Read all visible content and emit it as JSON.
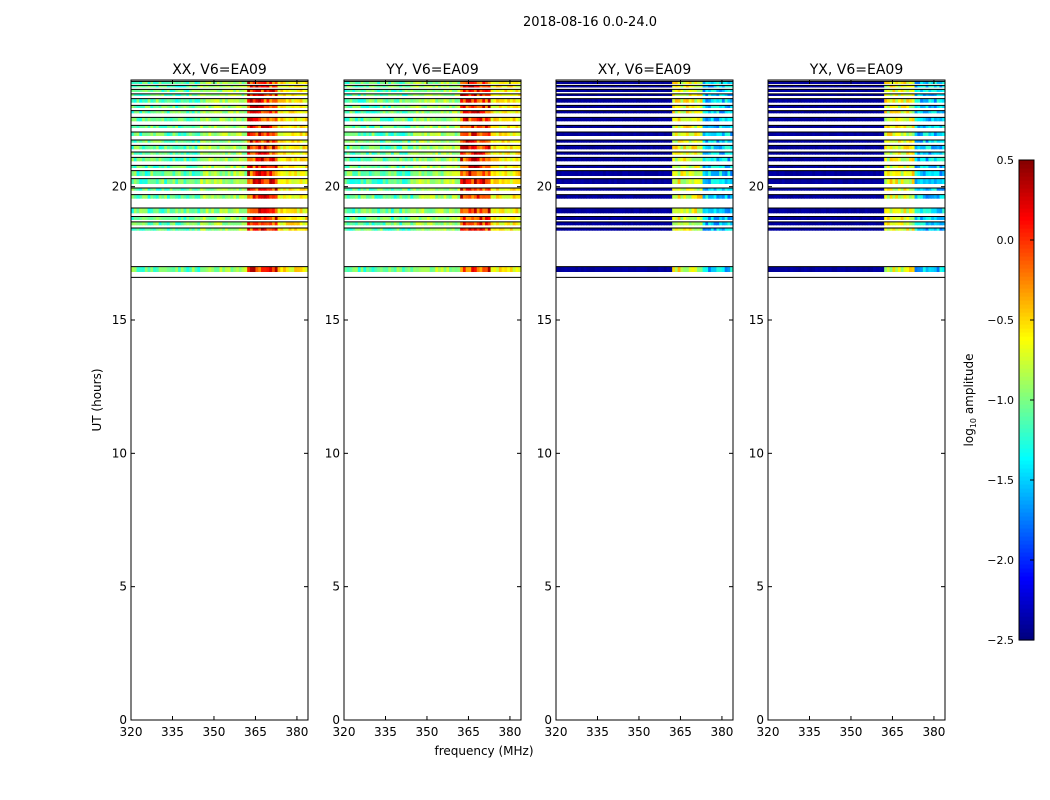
{
  "chart_data": {
    "type": "heatmap",
    "suptitle": "2018-08-16 0.0-24.0",
    "xlabel": "frequency (MHz)",
    "ylabel": "UT (hours)",
    "xlim": [
      320,
      384
    ],
    "ylim": [
      0,
      24
    ],
    "xticks": [
      320,
      335,
      350,
      365,
      380
    ],
    "yticks": [
      0,
      5,
      10,
      15,
      20
    ],
    "panels": [
      {
        "title": "XX, V6=EA09",
        "polarization": "XX",
        "cross": false
      },
      {
        "title": "YY, V6=EA09",
        "polarization": "YY",
        "cross": false
      },
      {
        "title": "XY, V6=EA09",
        "polarization": "XY",
        "cross": true
      },
      {
        "title": "YX, V6=EA09",
        "polarization": "YX",
        "cross": true
      }
    ],
    "colorbar": {
      "label": "log10 amplitude",
      "label_main": "log",
      "label_sub": "10",
      "label_tail": " amplitude",
      "min": -2.5,
      "max": 0.5,
      "ticks": [
        "0.5",
        "0.0",
        "−0.5",
        "−1.0",
        "−1.5",
        "−2.0",
        "−2.5"
      ],
      "colormap": "jet"
    },
    "data_time_range_hours": [
      16.6,
      24.0
    ],
    "scans": [
      {
        "start": 23.85,
        "end": 23.95
      },
      {
        "start": 23.72,
        "end": 23.8
      },
      {
        "start": 23.55,
        "end": 23.65
      },
      {
        "start": 23.4,
        "end": 23.48
      },
      {
        "start": 23.15,
        "end": 23.3
      },
      {
        "start": 22.95,
        "end": 23.05
      },
      {
        "start": 22.75,
        "end": 22.85
      },
      {
        "start": 22.45,
        "end": 22.6
      },
      {
        "start": 22.2,
        "end": 22.3
      },
      {
        "start": 21.9,
        "end": 22.05
      },
      {
        "start": 21.65,
        "end": 21.75
      },
      {
        "start": 21.4,
        "end": 21.55
      },
      {
        "start": 21.2,
        "end": 21.3
      },
      {
        "start": 20.95,
        "end": 21.1
      },
      {
        "start": 20.7,
        "end": 20.8
      },
      {
        "start": 20.4,
        "end": 20.6
      },
      {
        "start": 20.1,
        "end": 20.3
      },
      {
        "start": 19.85,
        "end": 19.95
      },
      {
        "start": 19.55,
        "end": 19.7
      },
      {
        "start": 19.0,
        "end": 19.2
      },
      {
        "start": 18.75,
        "end": 18.88
      },
      {
        "start": 18.55,
        "end": 18.68
      },
      {
        "start": 18.35,
        "end": 18.45
      },
      {
        "start": 16.8,
        "end": 17.0
      }
    ]
  }
}
